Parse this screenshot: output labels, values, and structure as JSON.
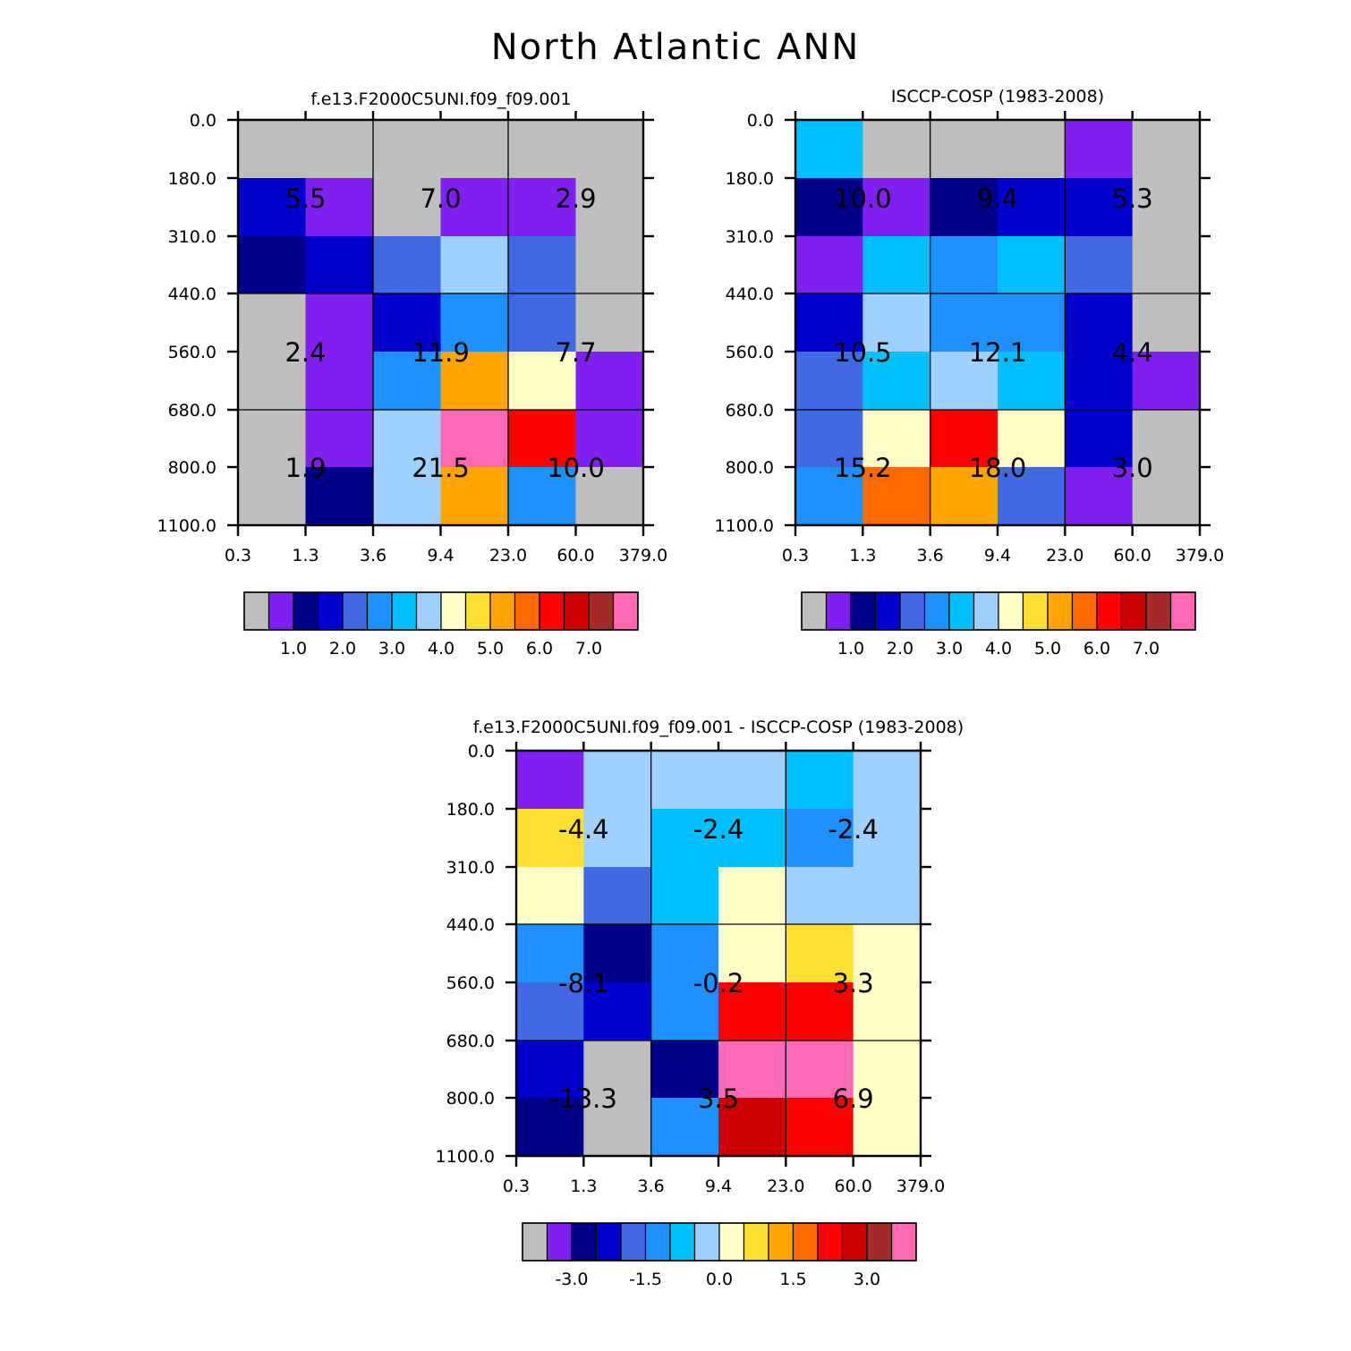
{
  "figure": {
    "title": "North Atlantic ANN"
  },
  "palette": [
    "#bebebe",
    "#8020f0",
    "#00008b",
    "#0000cd",
    "#4169e1",
    "#1e90ff",
    "#00bfff",
    "#a0d0ff",
    "#ffffc8",
    "#ffe030",
    "#ffa500",
    "#ff6a00",
    "#ff0000",
    "#cd0000",
    "#a52a2a",
    "#ff69b4"
  ],
  "chart_data": [
    {
      "type": "heatmap",
      "title": "f.e13.F2000C5UNI.f09_f09.001",
      "x_ticks": [
        "0.3",
        "1.3",
        "3.6",
        "9.4",
        "23.0",
        "60.0",
        "379.0"
      ],
      "y_ticks": [
        "0.0",
        "180.0",
        "310.0",
        "440.0",
        "560.0",
        "680.0",
        "800.0",
        "1100.0"
      ],
      "cell_indices": [
        [
          0,
          0,
          0,
          0,
          0,
          0
        ],
        [
          3,
          1,
          0,
          1,
          1,
          0
        ],
        [
          2,
          3,
          4,
          7,
          4,
          0
        ],
        [
          0,
          1,
          3,
          5,
          4,
          0
        ],
        [
          0,
          1,
          5,
          10,
          8,
          1
        ],
        [
          0,
          1,
          7,
          15,
          12,
          1
        ],
        [
          0,
          2,
          7,
          10,
          5,
          0
        ]
      ],
      "group_values": [
        [
          "5.5",
          "7.0",
          "2.9"
        ],
        [
          "2.4",
          "11.9",
          "7.7"
        ],
        [
          "1.9",
          "21.5",
          "10.0"
        ]
      ],
      "colorbar": {
        "labels": [
          "1.0",
          "2.0",
          "3.0",
          "4.0",
          "5.0",
          "6.0",
          "7.0"
        ]
      }
    },
    {
      "type": "heatmap",
      "title": "ISCCP-COSP (1983-2008)",
      "x_ticks": [
        "0.3",
        "1.3",
        "3.6",
        "9.4",
        "23.0",
        "60.0",
        "379.0"
      ],
      "y_ticks": [
        "0.0",
        "180.0",
        "310.0",
        "440.0",
        "560.0",
        "680.0",
        "800.0",
        "1100.0"
      ],
      "cell_indices": [
        [
          6,
          0,
          0,
          0,
          1,
          0
        ],
        [
          2,
          1,
          2,
          3,
          3,
          0
        ],
        [
          1,
          6,
          5,
          6,
          4,
          0
        ],
        [
          3,
          7,
          5,
          5,
          3,
          0
        ],
        [
          4,
          6,
          7,
          6,
          3,
          1
        ],
        [
          4,
          8,
          12,
          8,
          3,
          0
        ],
        [
          5,
          11,
          10,
          4,
          1,
          0
        ]
      ],
      "group_values": [
        [
          "10.0",
          "9.4",
          "5.3"
        ],
        [
          "10.5",
          "12.1",
          "4.4"
        ],
        [
          "15.2",
          "18.0",
          "3.0"
        ]
      ],
      "colorbar": {
        "labels": [
          "1.0",
          "2.0",
          "3.0",
          "4.0",
          "5.0",
          "6.0",
          "7.0"
        ]
      }
    },
    {
      "type": "heatmap",
      "title": "f.e13.F2000C5UNI.f09_f09.001 - ISCCP-COSP (1983-2008)",
      "x_ticks": [
        "0.3",
        "1.3",
        "3.6",
        "9.4",
        "23.0",
        "60.0",
        "379.0"
      ],
      "y_ticks": [
        "0.0",
        "180.0",
        "310.0",
        "440.0",
        "560.0",
        "680.0",
        "800.0",
        "1100.0"
      ],
      "cell_indices": [
        [
          1,
          7,
          7,
          7,
          6,
          7
        ],
        [
          9,
          7,
          6,
          6,
          5,
          7
        ],
        [
          8,
          4,
          6,
          8,
          7,
          7
        ],
        [
          5,
          2,
          5,
          8,
          9,
          8
        ],
        [
          4,
          3,
          5,
          12,
          12,
          8
        ],
        [
          3,
          0,
          2,
          15,
          15,
          8
        ],
        [
          2,
          0,
          5,
          13,
          12,
          8
        ]
      ],
      "group_values": [
        [
          "-4.4",
          "-2.4",
          "-2.4"
        ],
        [
          "-8.1",
          "-0.2",
          "3.3"
        ],
        [
          "-13.3",
          "3.5",
          "6.9"
        ]
      ],
      "colorbar": {
        "labels": [
          "-3.0",
          "-1.5",
          "0.0",
          "1.5",
          "3.0"
        ]
      }
    }
  ]
}
